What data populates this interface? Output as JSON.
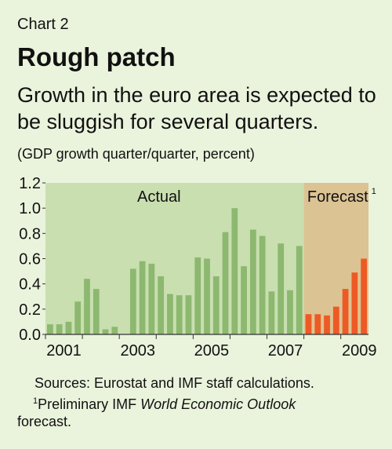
{
  "header": {
    "kicker": "Chart 2",
    "title": "Rough patch",
    "subtitle": "Growth in the euro area is expected to be sluggish for several quarters.",
    "units": "(GDP growth quarter/quarter, percent)"
  },
  "chart_data": {
    "type": "bar",
    "ylim": [
      0,
      1.2
    ],
    "yticks": [
      "0.0",
      "0.2",
      "0.4",
      "0.6",
      "0.8",
      "1.0",
      "1.2"
    ],
    "xticklabels": [
      "2001",
      "2003",
      "2005",
      "2007",
      "2009"
    ],
    "regions": [
      {
        "label": "Actual",
        "color": "#c9dfb0"
      },
      {
        "label": "Forecast",
        "sup": "1",
        "color": "#dcc393"
      }
    ],
    "colors": {
      "actual": "#8cb86f",
      "forecast": "#ee5a24"
    },
    "series": [
      {
        "values": [
          0.08,
          0.08,
          0.1,
          0.26,
          0.44,
          0.36,
          0.04,
          0.06,
          0.0,
          0.52,
          0.58,
          0.56,
          0.46,
          0.32,
          0.31,
          0.31,
          0.61,
          0.6,
          0.46,
          0.81,
          1.0,
          0.54,
          0.83,
          0.78,
          0.34,
          0.72,
          0.35,
          0.7
        ]
      },
      {
        "values": [
          0.16,
          0.16,
          0.15,
          0.22,
          0.36,
          0.49,
          0.6
        ]
      }
    ]
  },
  "footer": {
    "sources": "Sources: Eurostat and IMF staff calculations.",
    "note_sup": "1",
    "note_text": "Preliminary IMF ",
    "note_italic": "World Economic Outlook",
    "note_end": "forecast."
  }
}
